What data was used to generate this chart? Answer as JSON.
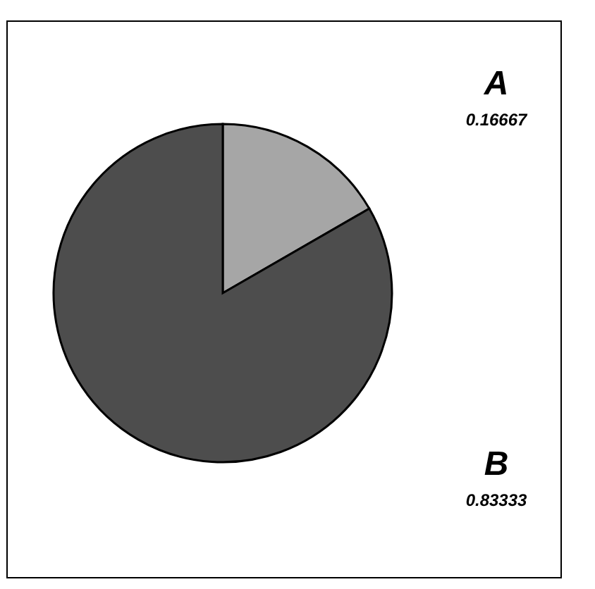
{
  "chart_data": {
    "type": "pie",
    "categories": [
      "A",
      "B"
    ],
    "values": [
      0.16667,
      0.83333
    ],
    "colors": [
      "#a6a6a6",
      "#4d4d4d"
    ],
    "data_labels": true
  }
}
